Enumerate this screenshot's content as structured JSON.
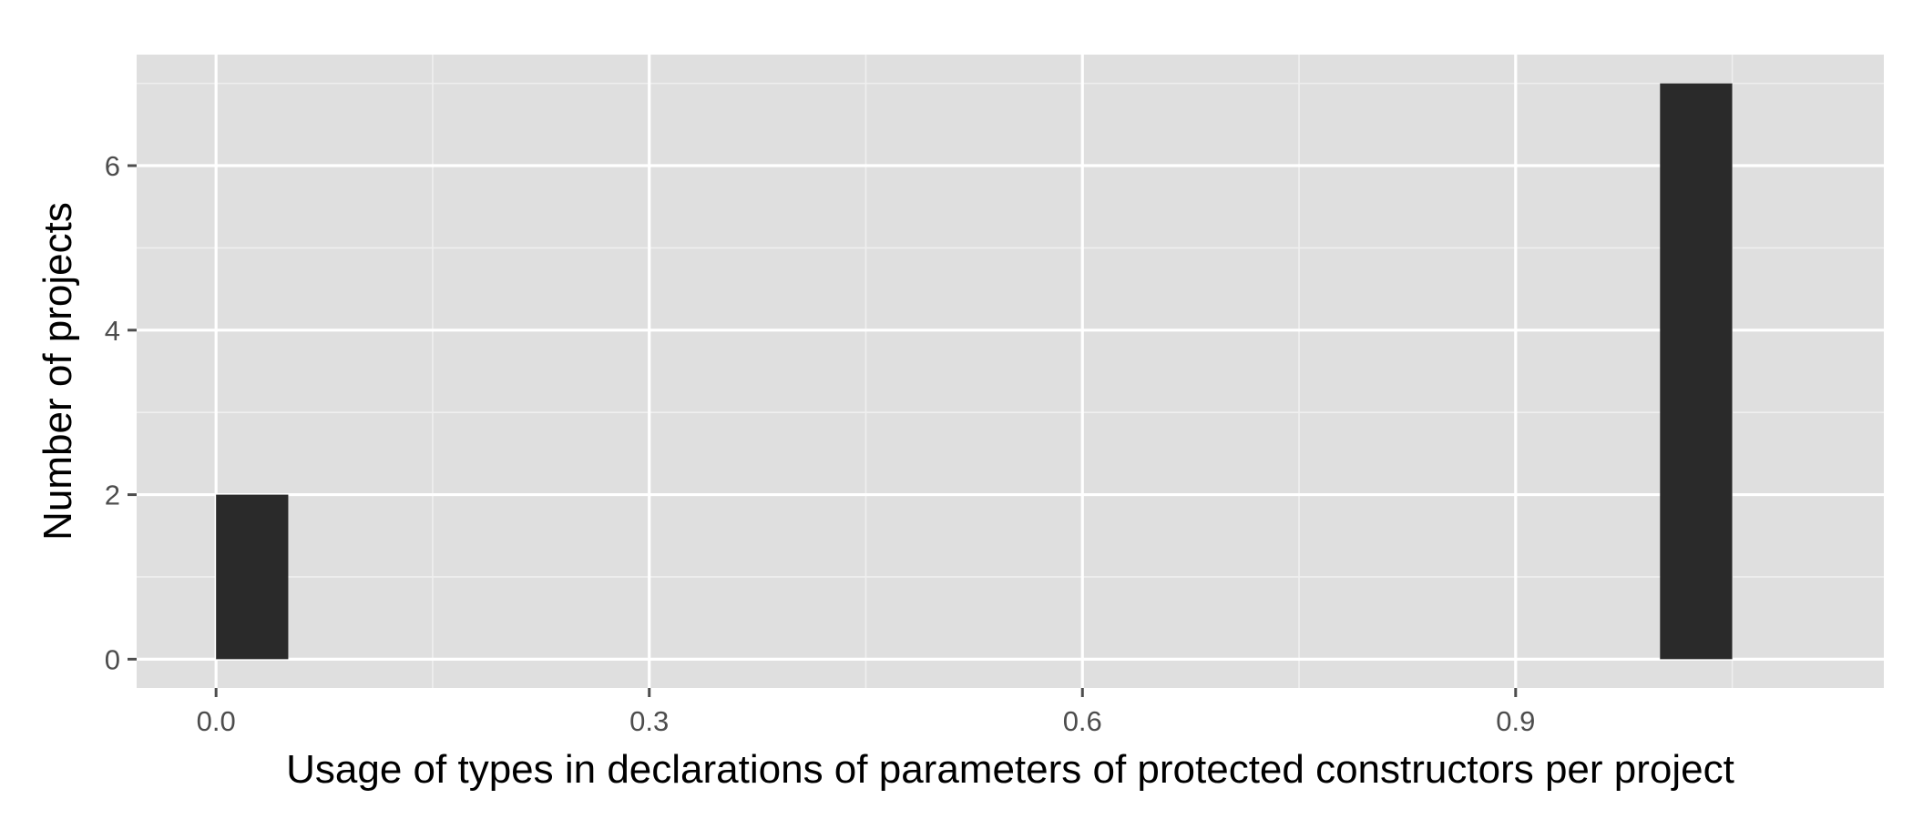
{
  "chart_data": {
    "type": "bar",
    "title": "",
    "xlabel": "Usage of types in declarations of parameters of protected constructors per project",
    "ylabel": "Number of projects",
    "x_ticks": [
      "0.0",
      "0.3",
      "0.6",
      "0.9"
    ],
    "y_ticks": [
      "0",
      "2",
      "4",
      "6"
    ],
    "xlim": [
      -0.055,
      1.155
    ],
    "ylim": [
      -0.35,
      7.35
    ],
    "grid": true,
    "legend": "none",
    "bin_width": 0.05,
    "bins": [
      {
        "x0": 0.0,
        "x1": 0.05,
        "count": 2
      },
      {
        "x0": 1.0,
        "x1": 1.05,
        "count": 7
      }
    ],
    "colors": {
      "panel": "#dfdfdf",
      "grid_major": "#ffffff",
      "grid_minor": "#efefef",
      "bar": "#2a2a2a",
      "tick": "#4d4d4d",
      "text": "#000000"
    }
  }
}
